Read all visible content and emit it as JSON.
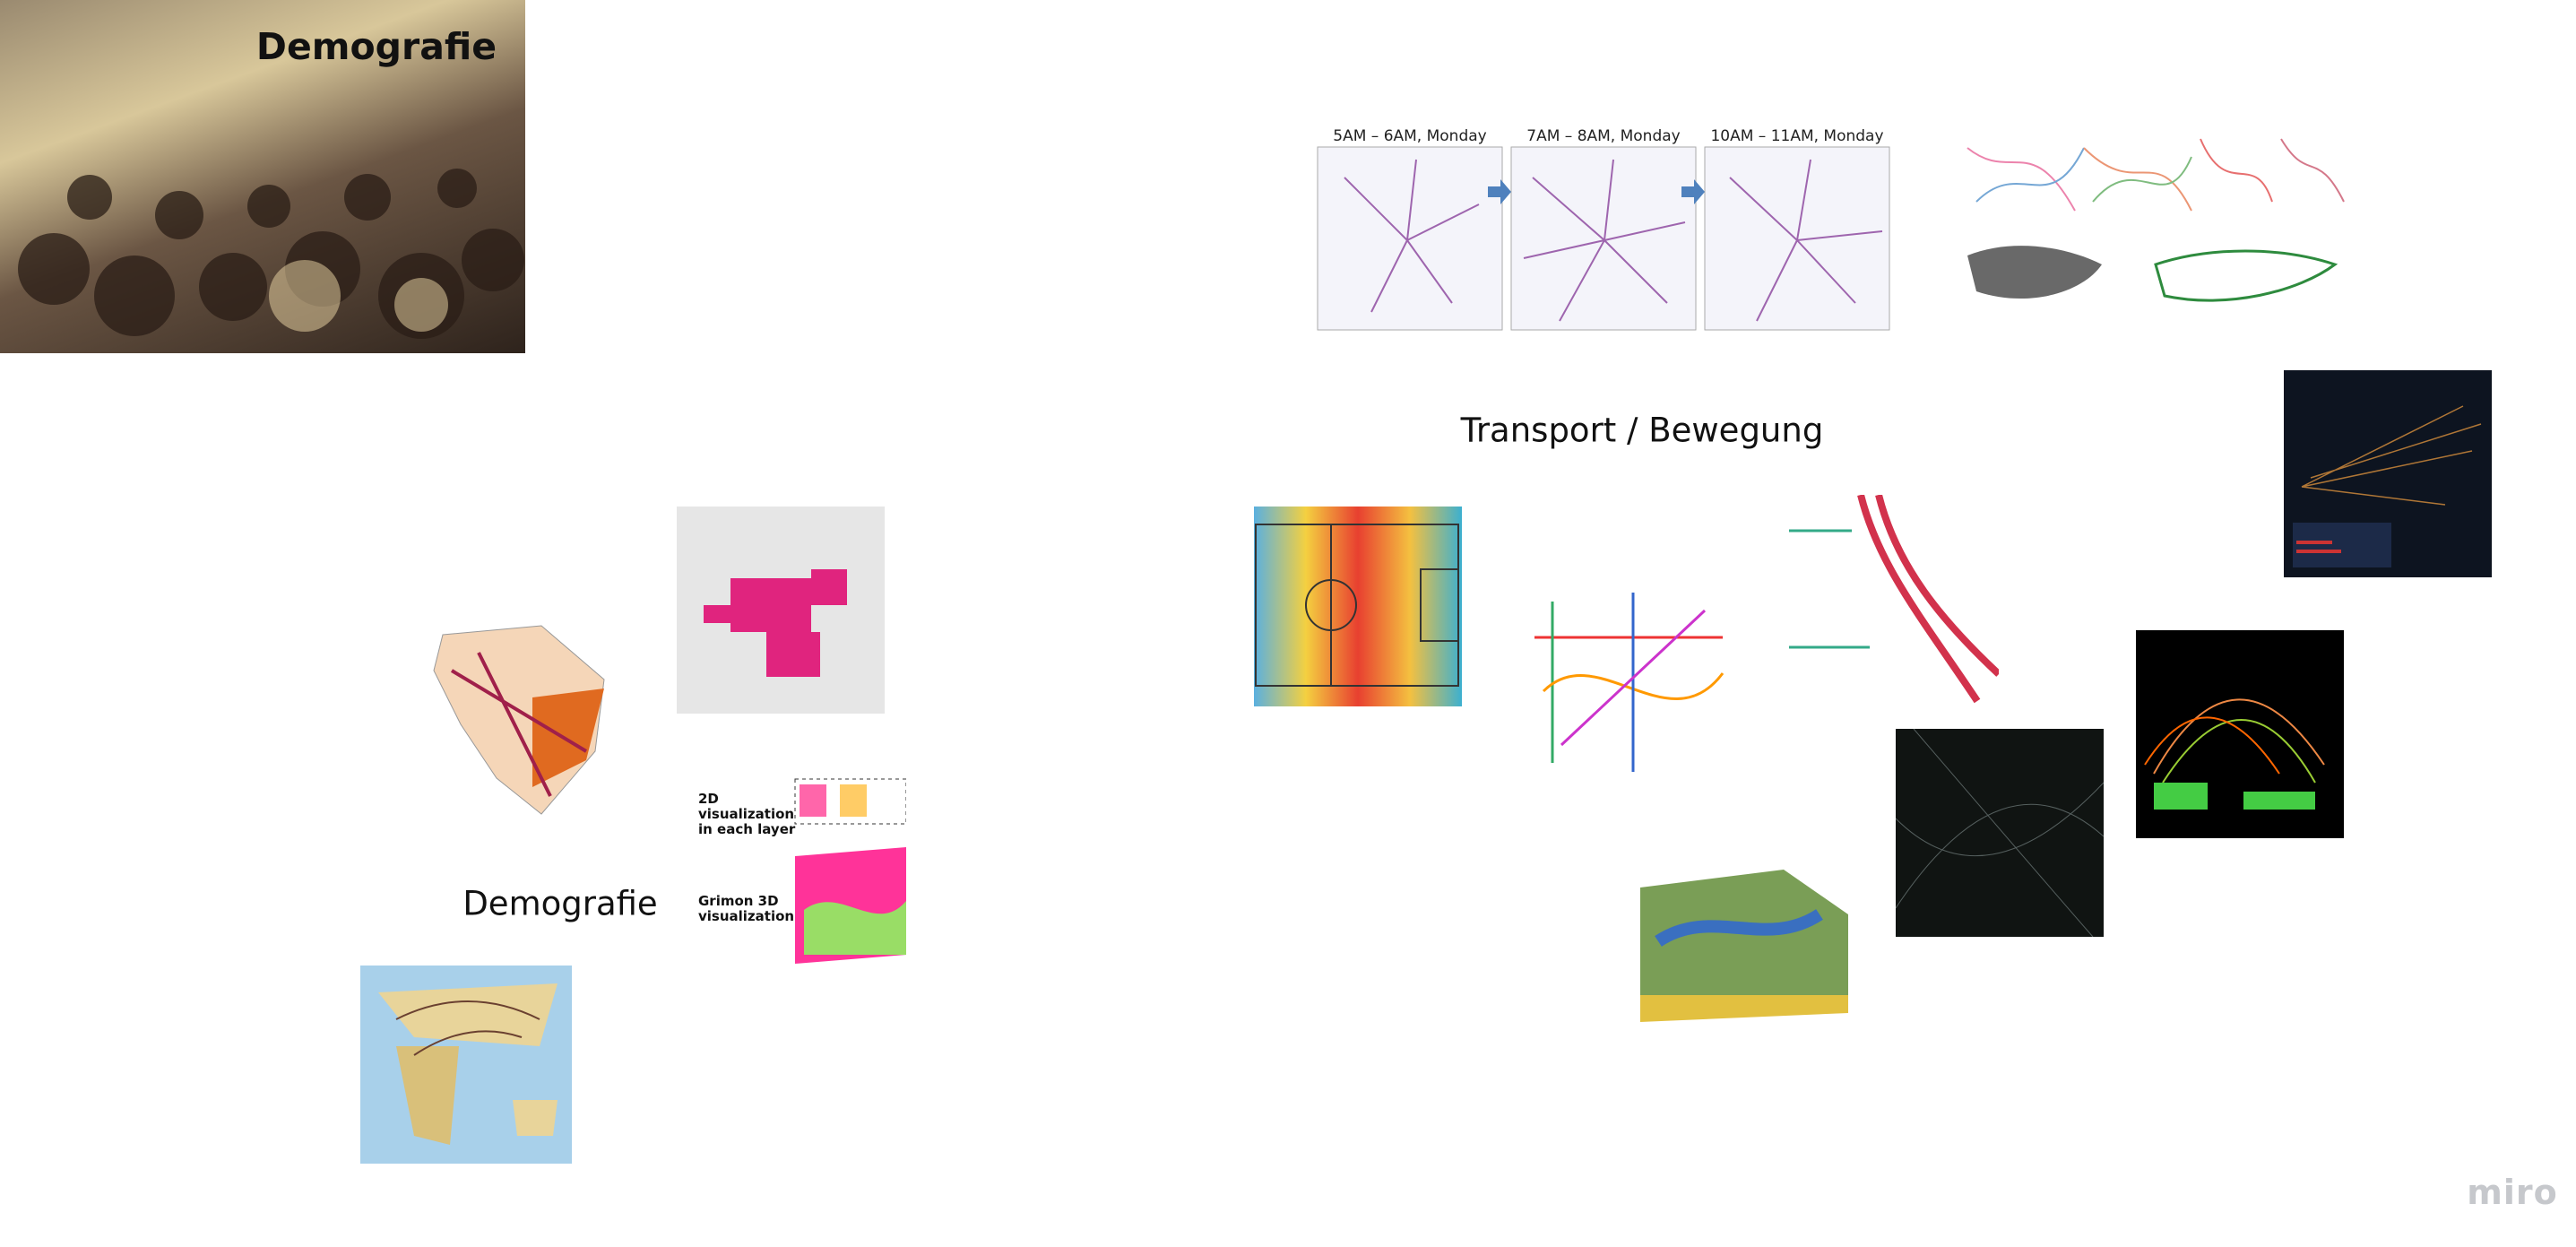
{
  "board": {
    "demography_banner": {
      "title": "Demografie"
    },
    "transport_figure": {
      "panels": [
        "5AM – 6AM, Monday",
        "7AM – 8AM, Monday",
        "10AM – 11AM, Monday"
      ]
    },
    "transport_label": "Transport / Bewegung",
    "demography_label": "Demografie",
    "layer_figure": {
      "labels": [
        "2D visualization in each layer",
        "Grimon 3D visualization"
      ]
    },
    "brand": "miro"
  }
}
